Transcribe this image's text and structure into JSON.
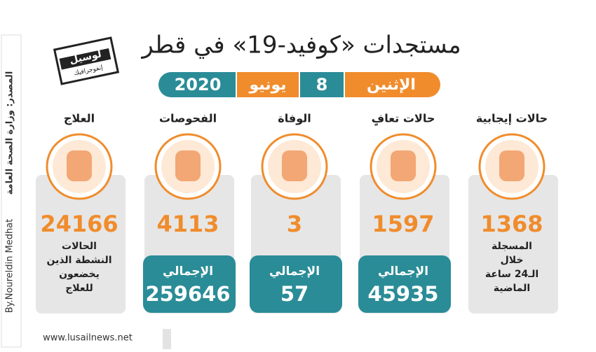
{
  "header": {
    "title": "مستجدات «كوفيد-19» في قطر",
    "date": {
      "weekday": "الإثنين",
      "day": "8",
      "month": "يونيو",
      "year": "2020"
    },
    "logo": {
      "name": "لوسيل",
      "sub": "إنفوجرافيك"
    }
  },
  "columns": [
    {
      "label": "حالات إيجابية",
      "number": "1368",
      "description": [
        "المسجلة",
        "خلال",
        "الـ24 ساعة",
        "الماضية"
      ]
    },
    {
      "label": "حالات تعافٍ",
      "number": "1597",
      "total_label": "الإجمالي",
      "total": "45935"
    },
    {
      "label": "الوفاة",
      "number": "3",
      "total_label": "الإجمالي",
      "total": "57"
    },
    {
      "label": "الفحوصات",
      "number": "4113",
      "total_label": "الإجمالي",
      "total": "259646"
    },
    {
      "label": "العلاج",
      "number": "24166",
      "description": [
        "الحالات",
        "النشطة الذين",
        "يخضعون",
        "للعلاج"
      ]
    }
  ],
  "footer": {
    "source": "المصدر: وزارة الصحة العامة",
    "author": "By.Noureldin Medhat",
    "website": "www.lusailnews.net"
  }
}
